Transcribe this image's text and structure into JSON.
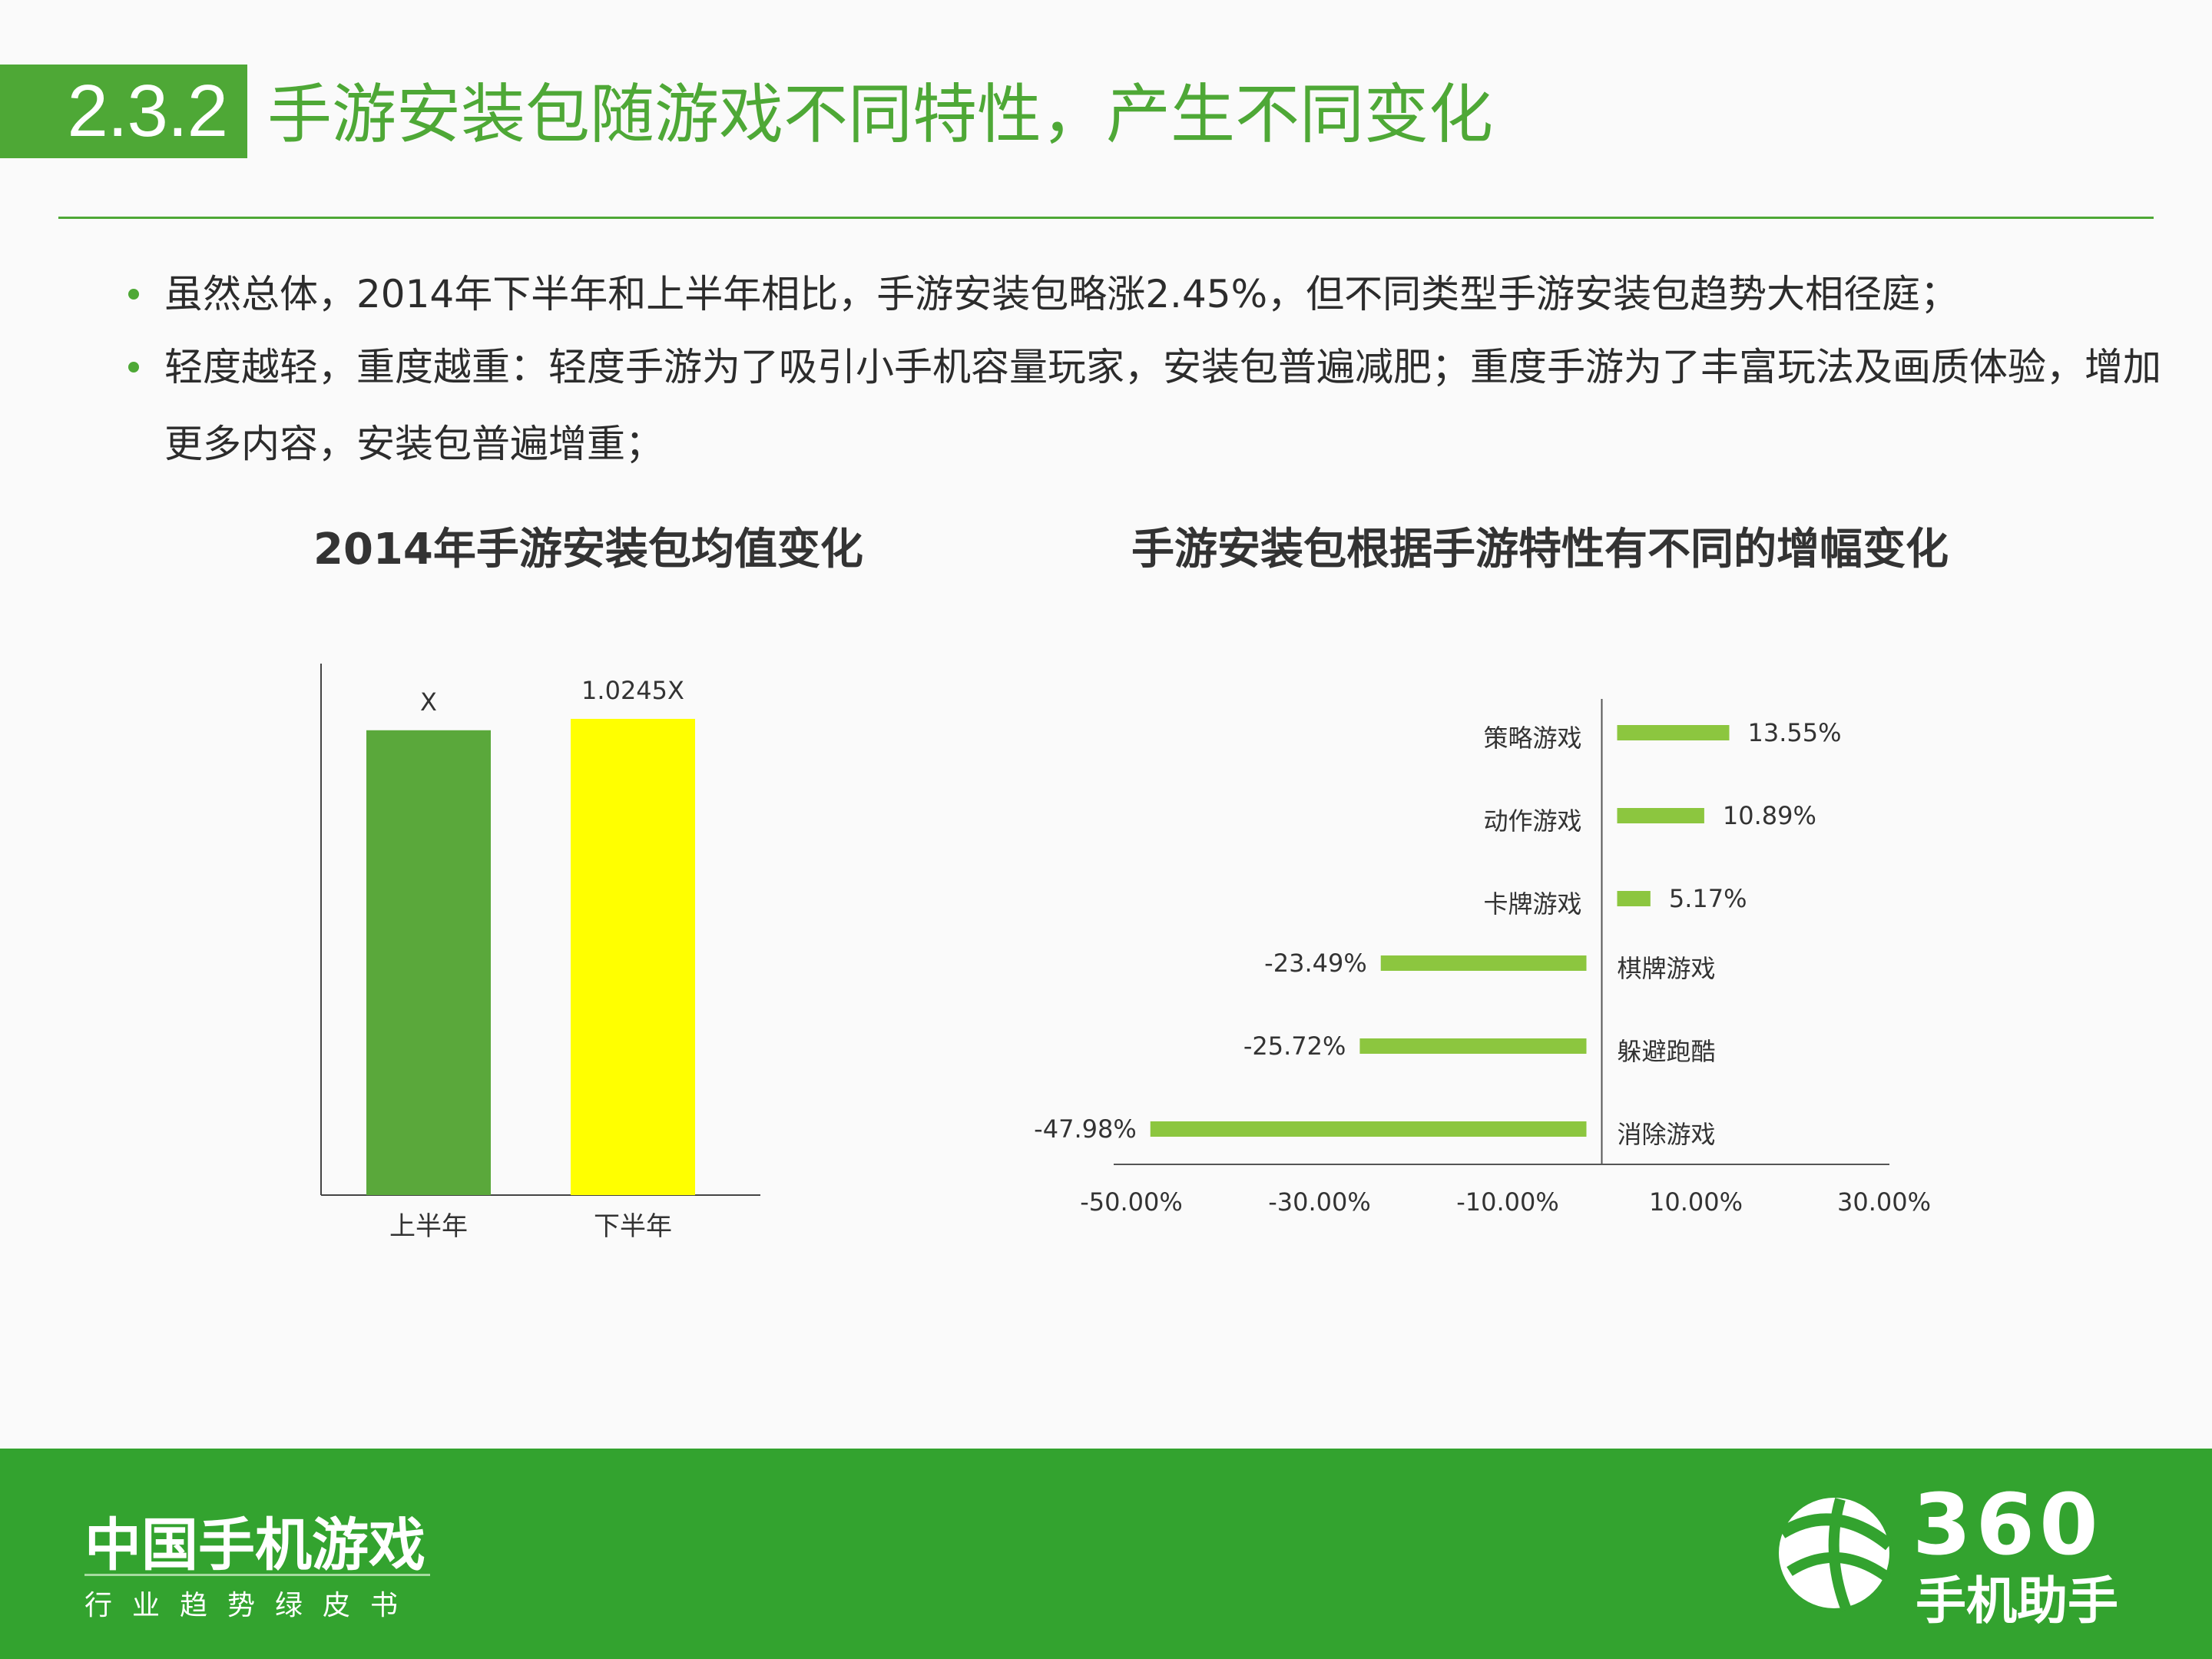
{
  "header": {
    "section_number": "2.3.2",
    "title": "手游安装包随游戏不同特性，产生不同变化"
  },
  "bullets": [
    "虽然总体，2014年下半年和上半年相比，手游安装包略涨2.45%，但不同类型手游安装包趋势大相径庭；",
    "轻度越轻，重度越重：轻度手游为了吸引小手机容量玩家，安装包普遍减肥；重度手游为了丰富玩法及画质体验，增加更多内容，安装包普遍增重；"
  ],
  "colors": {
    "brand_green": "#4ea836",
    "bar_green": "#5aa83b",
    "bar_yellow": "#ffff00",
    "bar_light_green": "#8cc63f",
    "footer_green": "#33a32f"
  },
  "chart_data": [
    {
      "type": "bar",
      "title": "2014年手游安装包均值变化",
      "categories": [
        "上半年",
        "下半年"
      ],
      "values": [
        1,
        1.0245
      ],
      "data_labels": [
        "X",
        "1.0245X"
      ],
      "bar_colors": [
        "#5aa83b",
        "#ffff00"
      ],
      "ylim": [
        0,
        1.15
      ],
      "grid": false,
      "legend": "none"
    },
    {
      "type": "bar",
      "orientation": "horizontal",
      "title": "手游安装包根据手游特性有不同的增幅变化",
      "categories": [
        "策略游戏",
        "动作游戏",
        "卡牌游戏",
        "棋牌游戏",
        "躲避跑酷",
        "消除游戏"
      ],
      "values": [
        13.55,
        10.89,
        5.17,
        -23.49,
        -25.72,
        -47.98
      ],
      "data_labels": [
        "13.55%",
        "10.89%",
        "5.17%",
        "-23.49%",
        "-25.72%",
        "-47.98%"
      ],
      "x_ticks": [
        "-50.00%",
        "-30.00%",
        "-10.00%",
        "10.00%",
        "30.00%"
      ],
      "x_tick_values": [
        -50,
        -30,
        -10,
        10,
        30
      ],
      "xlim": [
        -50,
        30
      ],
      "bar_color": "#8cc63f",
      "grid": false,
      "legend": "none"
    }
  ],
  "footer": {
    "title": "中国手机游戏",
    "subtitle": "行业趋势绿皮书",
    "logo_number": "360",
    "logo_name": "手机助手"
  }
}
